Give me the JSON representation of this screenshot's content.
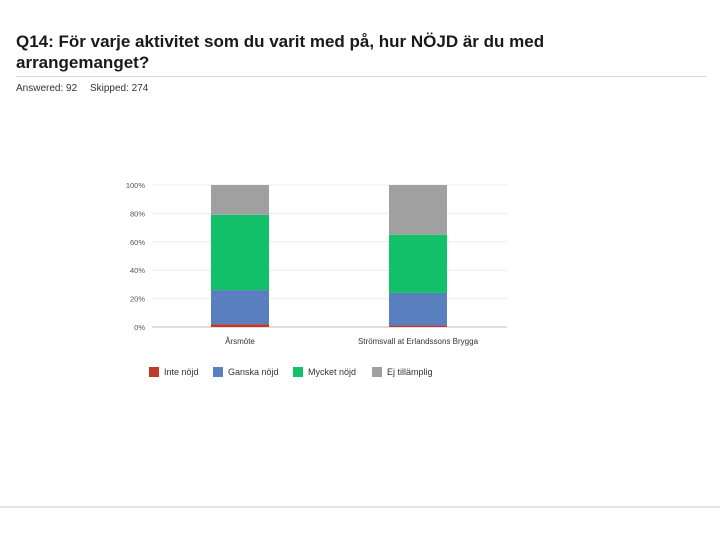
{
  "question": {
    "title": "Q14: För varje aktivitet som du varit med på, hur NÖJD är du med arrangemanget?",
    "answered": "Answered: 92",
    "skipped": "Skipped: 274"
  },
  "chart_data": {
    "type": "bar",
    "stacked": true,
    "categories": [
      "Årsmöte",
      "Strömsvall at Erlandssons Brygga"
    ],
    "series": [
      {
        "name": "Inte nöjd",
        "color": "#c0392b",
        "values": [
          2,
          1
        ]
      },
      {
        "name": "Ganska nöjd",
        "color": "#5a7fbf",
        "values": [
          24,
          23
        ]
      },
      {
        "name": "Mycket nöjd",
        "color": "#12c06a",
        "values": [
          53,
          41
        ]
      },
      {
        "name": "Ej tillämplig",
        "color": "#a0a0a0",
        "values": [
          21,
          35
        ]
      }
    ],
    "y_ticks": [
      "0%",
      "20%",
      "40%",
      "60%",
      "80%",
      "100%"
    ],
    "ylim": [
      0,
      100
    ],
    "legend_position": "bottom"
  }
}
